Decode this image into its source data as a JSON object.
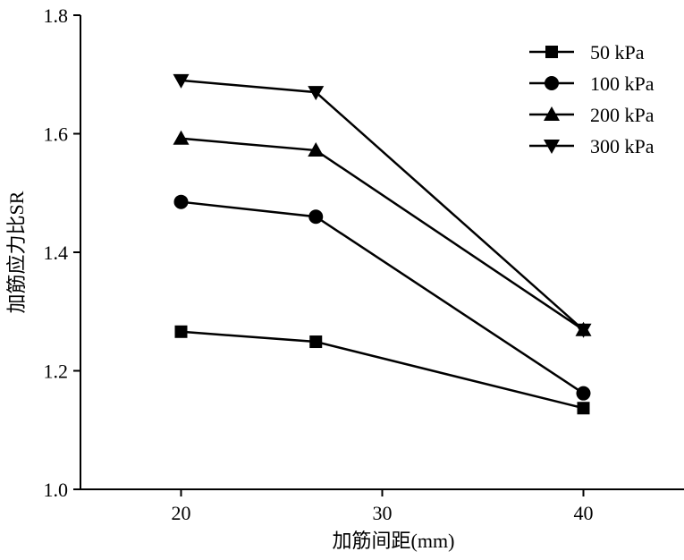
{
  "chart_data": {
    "type": "line",
    "title": "",
    "xlabel": "加筋间距(mm)",
    "ylabel": "加筋应力比SR",
    "xlim": [
      15,
      45
    ],
    "ylim": [
      1.0,
      1.8
    ],
    "xticks": [
      20,
      30,
      40
    ],
    "xtick_labels": [
      "20",
      "30",
      "40"
    ],
    "yticks": [
      1.0,
      1.2,
      1.4,
      1.6,
      1.8
    ],
    "ytick_labels": [
      "1.0",
      "1.2",
      "1.4",
      "1.6",
      "1.8"
    ],
    "grid": false,
    "legend_position": "top-right",
    "x": [
      20,
      26.7,
      40
    ],
    "series": [
      {
        "name": "50 kPa",
        "marker": "square",
        "values": [
          1.266,
          1.249,
          1.137
        ]
      },
      {
        "name": "100 kPa",
        "marker": "circle",
        "values": [
          1.485,
          1.46,
          1.162
        ]
      },
      {
        "name": "200 kPa",
        "marker": "triangle-up",
        "values": [
          1.592,
          1.572,
          1.269
        ]
      },
      {
        "name": "300 kPa",
        "marker": "triangle-down",
        "values": [
          1.69,
          1.67,
          1.269
        ]
      }
    ],
    "color": "#000000"
  }
}
